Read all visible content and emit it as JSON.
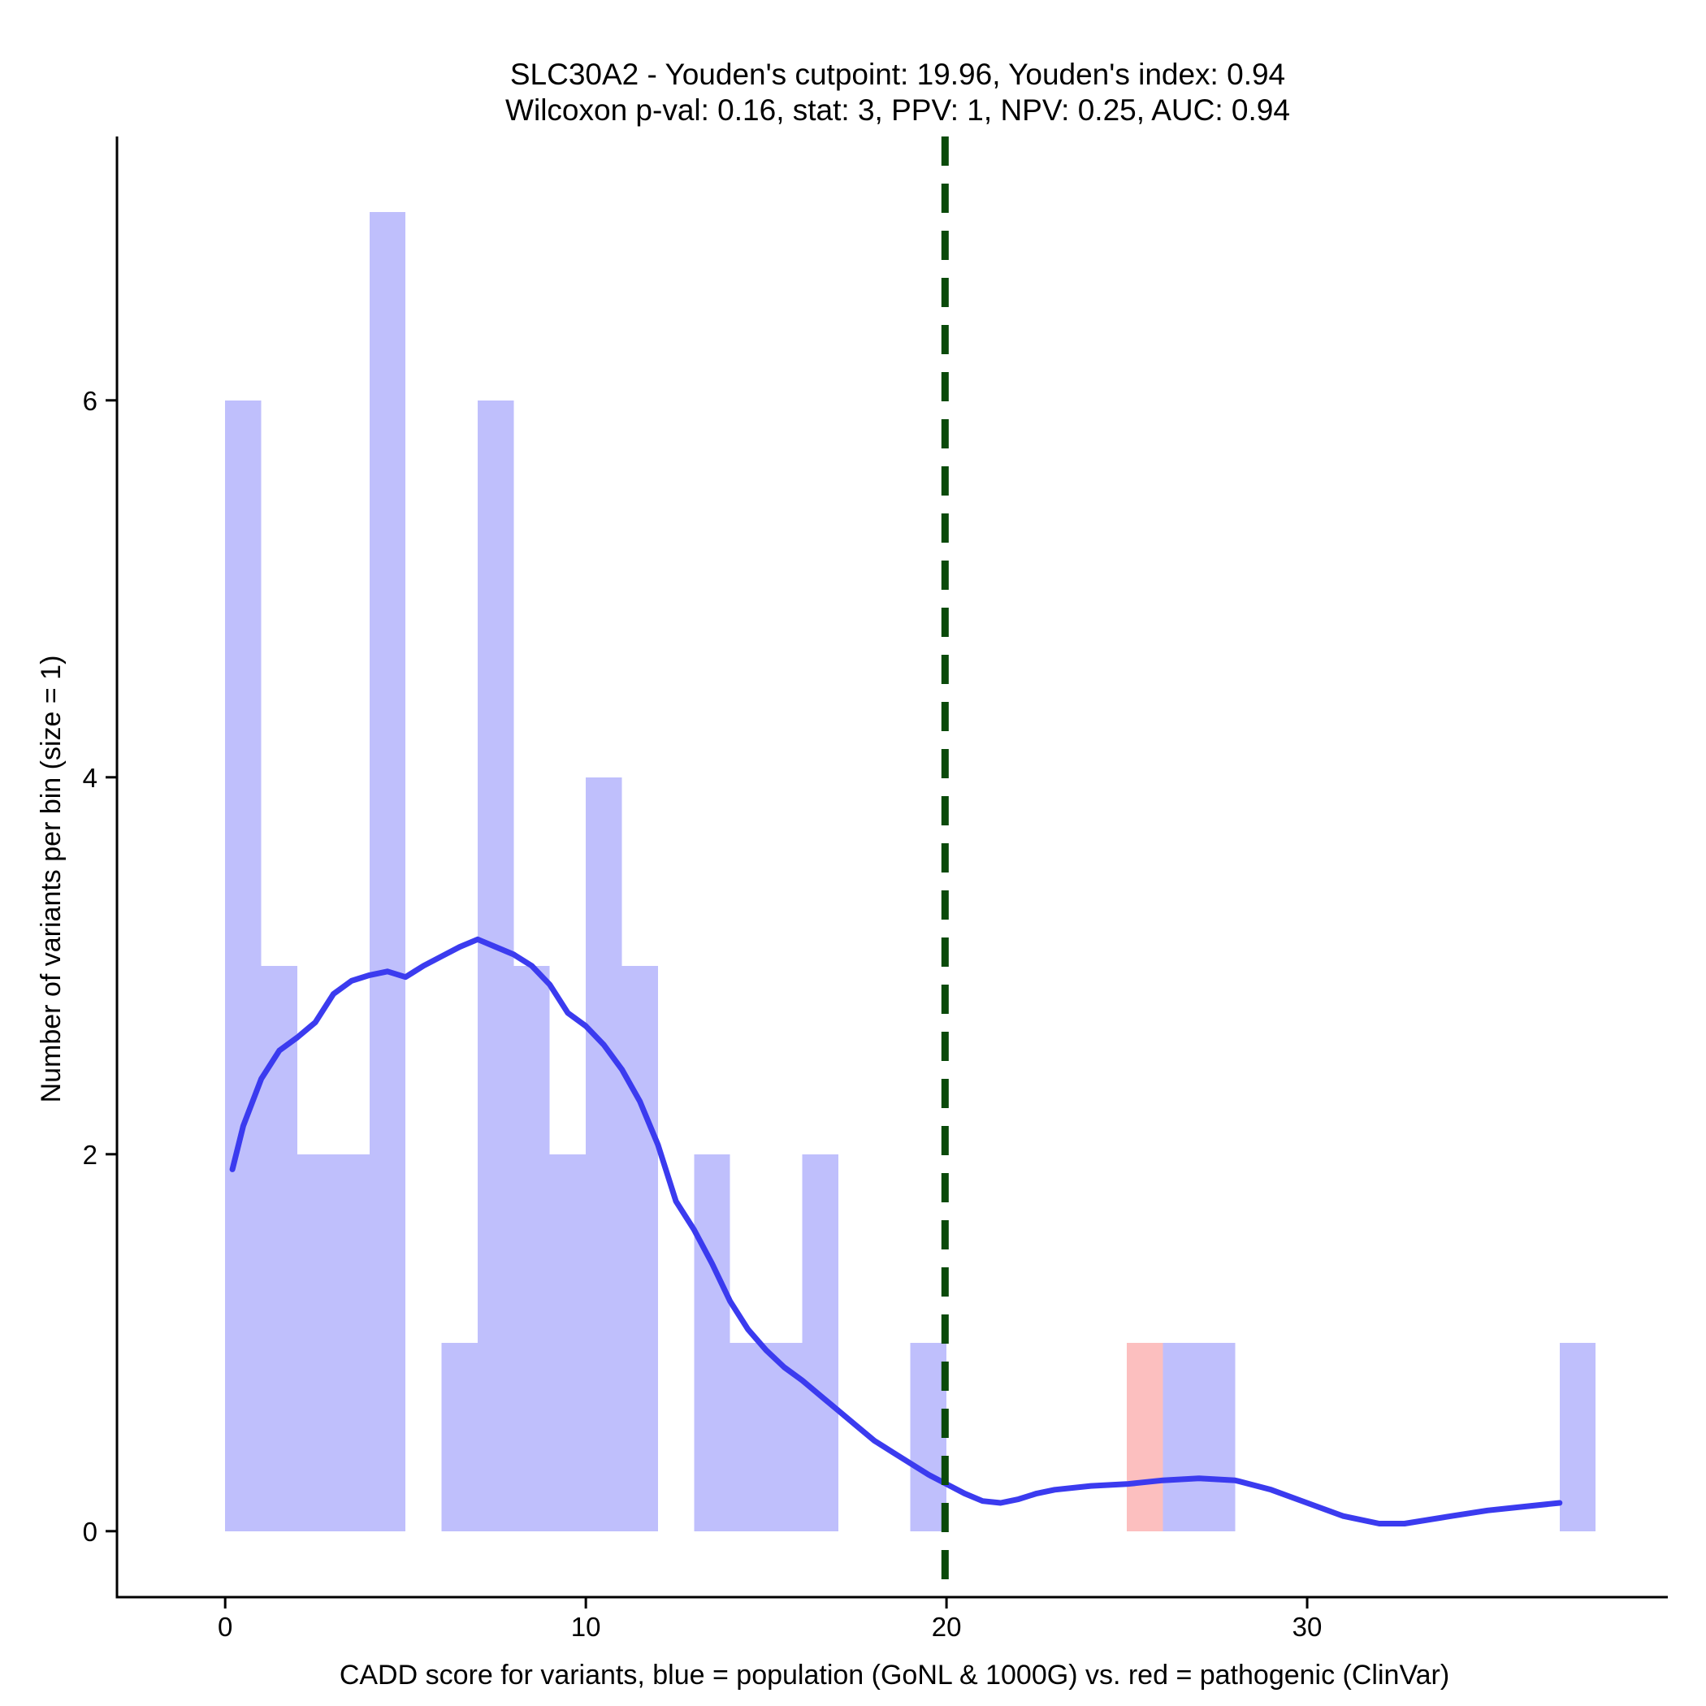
{
  "chart_data": {
    "type": "bar",
    "title_line1": "SLC30A2 - Youden's cutpoint: 19.96, Youden's index: 0.94",
    "title_line2": "Wilcoxon p-val: 0.16, stat: 3, PPV: 1, NPV: 0.25, AUC: 0.94",
    "xlabel": "CADD score for variants, blue = population (GoNL & 1000G) vs. red = pathogenic (ClinVar)",
    "ylabel": "Number of variants per bin (size = 1)",
    "xlim": [
      -3,
      40
    ],
    "ylim": [
      -0.35,
      7.4
    ],
    "xticks": [
      0,
      10,
      20,
      30
    ],
    "yticks": [
      0,
      2,
      4,
      6
    ],
    "bin_width": 1,
    "colors": {
      "population": "#bfbffc",
      "pathogenic": "#fcbfbf",
      "density": "#3b3bef",
      "cutpoint": "#0a4a0a"
    },
    "series": [
      {
        "name": "population",
        "bins": [
          {
            "x0": 0,
            "count": 6
          },
          {
            "x0": 1,
            "count": 3
          },
          {
            "x0": 2,
            "count": 2
          },
          {
            "x0": 3,
            "count": 2
          },
          {
            "x0": 4,
            "count": 7
          },
          {
            "x0": 6,
            "count": 1
          },
          {
            "x0": 7,
            "count": 6
          },
          {
            "x0": 8,
            "count": 3
          },
          {
            "x0": 9,
            "count": 2
          },
          {
            "x0": 10,
            "count": 4
          },
          {
            "x0": 11,
            "count": 3
          },
          {
            "x0": 13,
            "count": 2
          },
          {
            "x0": 14,
            "count": 1
          },
          {
            "x0": 15,
            "count": 1
          },
          {
            "x0": 16,
            "count": 2
          },
          {
            "x0": 19,
            "count": 1
          },
          {
            "x0": 26,
            "count": 1
          },
          {
            "x0": 27,
            "count": 1
          },
          {
            "x0": 37,
            "count": 1
          }
        ]
      },
      {
        "name": "pathogenic",
        "bins": [
          {
            "x0": 25,
            "count": 1
          }
        ]
      }
    ],
    "density_curve": {
      "x": [
        0.2,
        0.5,
        1,
        1.5,
        2,
        2.5,
        3,
        3.5,
        4,
        4.5,
        5,
        5.5,
        6,
        6.5,
        7,
        7.5,
        8,
        8.5,
        9,
        9.5,
        10,
        10.5,
        11,
        11.5,
        12,
        12.5,
        13,
        13.5,
        14,
        14.5,
        15,
        15.5,
        16,
        16.5,
        17,
        17.5,
        18,
        18.5,
        19,
        19.5,
        20,
        20.5,
        21,
        21.5,
        22,
        22.5,
        23,
        24,
        25,
        26,
        27,
        28,
        29,
        30,
        31,
        32,
        32.7,
        34,
        35,
        36,
        37
      ],
      "y": [
        1.92,
        2.15,
        2.4,
        2.55,
        2.62,
        2.7,
        2.85,
        2.92,
        2.95,
        2.97,
        2.94,
        3.0,
        3.05,
        3.1,
        3.14,
        3.1,
        3.06,
        3.0,
        2.9,
        2.75,
        2.68,
        2.58,
        2.45,
        2.28,
        2.05,
        1.75,
        1.6,
        1.42,
        1.22,
        1.07,
        0.96,
        0.87,
        0.8,
        0.72,
        0.64,
        0.56,
        0.48,
        0.42,
        0.36,
        0.3,
        0.25,
        0.2,
        0.16,
        0.15,
        0.17,
        0.2,
        0.22,
        0.24,
        0.25,
        0.27,
        0.28,
        0.27,
        0.22,
        0.15,
        0.08,
        0.04,
        0.04,
        0.08,
        0.11,
        0.13,
        0.15
      ]
    },
    "cutpoint": 19.96,
    "grid": false,
    "legend": "none"
  }
}
